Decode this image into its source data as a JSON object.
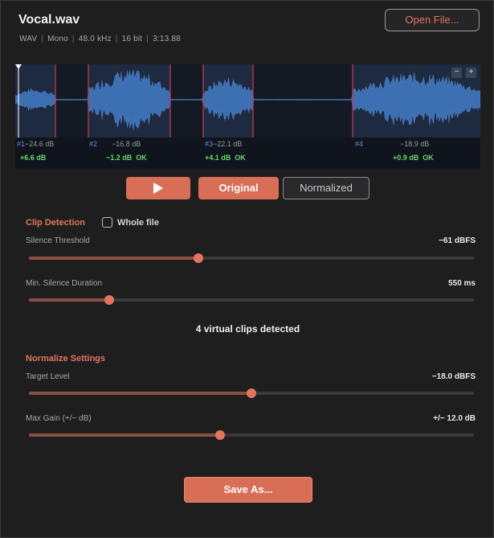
{
  "file": {
    "title": "Vocal.wav",
    "format": "WAV",
    "channels": "Mono",
    "sample_rate": "48.0 kHz",
    "bit_depth": "16 bit",
    "duration": "3:13.88"
  },
  "toolbar": {
    "open_label": "Open File..."
  },
  "waveform": {
    "zoom_minus": "−",
    "zoom_plus": "+",
    "colors": {
      "wave": "#3d6fb3",
      "clip_line": "#c0394c",
      "highlight": "#1d2a40"
    },
    "clips": [
      {
        "num": "#1",
        "peak": "−24.6 dB",
        "gain": "+6.6 dB",
        "status": ""
      },
      {
        "num": "#2",
        "peak": "−16.8 dB",
        "gain": "−1.2 dB",
        "status": "OK"
      },
      {
        "num": "#3",
        "peak": "−22.1 dB",
        "gain": "+4.1 dB",
        "status": "OK"
      },
      {
        "num": "#4",
        "peak": "−18.9 dB",
        "gain": "+0.9 dB",
        "status": "OK"
      }
    ]
  },
  "transport": {
    "play_icon": "play-icon",
    "original_label": "Original",
    "normalized_label": "Normalized"
  },
  "clip_detection": {
    "title": "Clip Detection",
    "whole_file_label": "Whole file",
    "whole_file_checked": false,
    "silence_threshold": {
      "label": "Silence Threshold",
      "value": "−61 dBFS",
      "fraction": 0.38
    },
    "min_silence_duration": {
      "label": "Min. Silence Duration",
      "value": "550 ms",
      "fraction": 0.18
    },
    "detected_text": "4 virtual clips detected"
  },
  "normalize": {
    "title": "Normalize Settings",
    "target_level": {
      "label": "Target Level",
      "value": "−18.0 dBFS",
      "fraction": 0.5
    },
    "max_gain": {
      "label": "Max Gain (+/− dB)",
      "value": "+/− 12.0 dB",
      "fraction": 0.43
    }
  },
  "save_label": "Save As..."
}
